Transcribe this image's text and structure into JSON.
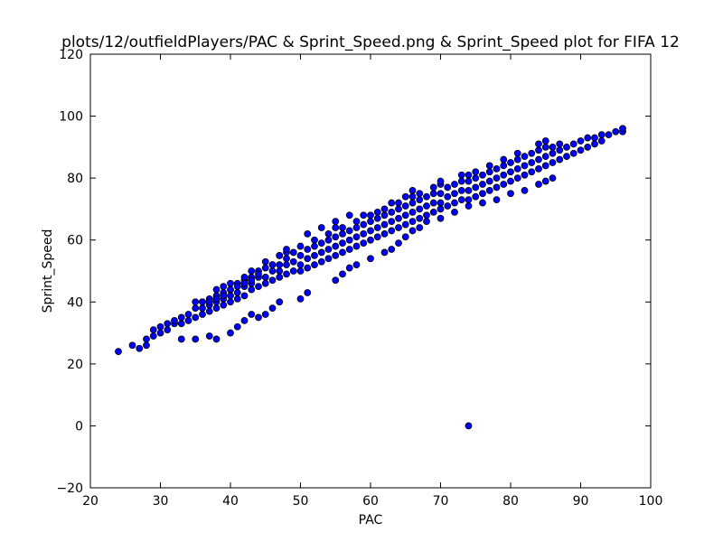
{
  "chart_data": {
    "type": "scatter",
    "title": "plots/12/outfieldPlayers/PAC & Sprint_Speed.png & Sprint_Speed plot for FIFA 12",
    "xlabel": "PAC",
    "ylabel": "Sprint_Speed",
    "xlim": [
      20,
      100
    ],
    "ylim": [
      -20,
      120
    ],
    "xticks": [
      "20",
      "30",
      "40",
      "50",
      "60",
      "70",
      "80",
      "90",
      "100"
    ],
    "yticks": [
      "−20",
      "0",
      "20",
      "40",
      "60",
      "80",
      "100",
      "120"
    ],
    "grid": false,
    "legend": "none",
    "marker_color": "#0000ff",
    "marker_edge_color": "#000000",
    "series": [
      {
        "x": [
          24,
          26,
          27,
          28,
          28,
          29,
          29,
          30,
          30,
          31,
          31,
          32,
          32,
          33,
          33,
          34,
          34,
          35,
          35,
          35,
          36,
          36,
          36,
          37,
          37,
          37,
          38,
          38,
          38,
          38,
          39,
          39,
          39,
          39,
          40,
          40,
          40,
          40,
          41,
          41,
          41,
          42,
          42,
          42,
          42,
          43,
          43,
          43,
          43,
          44,
          44,
          44,
          45,
          45,
          45,
          45,
          46,
          46,
          46,
          47,
          47,
          47,
          47,
          48,
          48,
          48,
          48,
          49,
          49,
          49,
          50,
          50,
          50,
          50,
          51,
          51,
          51,
          52,
          52,
          52,
          52,
          53,
          53,
          53,
          54,
          54,
          54,
          54,
          55,
          55,
          55,
          55,
          56,
          56,
          56,
          56,
          57,
          57,
          57,
          58,
          58,
          58,
          58,
          59,
          59,
          59,
          60,
          60,
          60,
          60,
          61,
          61,
          61,
          62,
          62,
          62,
          62,
          63,
          63,
          63,
          64,
          64,
          64,
          64,
          65,
          65,
          65,
          66,
          66,
          66,
          66,
          67,
          67,
          67,
          68,
          68,
          68,
          69,
          69,
          69,
          70,
          70,
          70,
          70,
          71,
          71,
          71,
          72,
          72,
          72,
          73,
          73,
          73,
          74,
          74,
          74,
          74,
          75,
          75,
          75,
          76,
          76,
          76,
          77,
          77,
          77,
          78,
          78,
          78,
          79,
          79,
          79,
          80,
          80,
          80,
          81,
          81,
          81,
          82,
          82,
          82,
          83,
          83,
          83,
          84,
          84,
          84,
          85,
          85,
          85,
          86,
          86,
          86,
          87,
          87,
          87,
          88,
          88,
          89,
          89,
          90,
          90,
          91,
          91,
          92,
          92,
          93,
          93,
          94,
          95,
          96,
          96,
          33,
          35,
          37,
          38,
          40,
          41,
          42,
          43,
          44,
          45,
          46,
          47,
          50,
          51,
          55,
          56,
          57,
          58,
          60,
          62,
          63,
          64,
          65,
          66,
          67,
          68,
          70,
          72,
          74,
          76,
          78,
          80,
          82,
          84,
          85,
          86,
          36,
          37,
          38,
          39,
          40,
          41,
          42,
          43,
          44,
          46,
          47,
          48,
          51,
          53,
          55,
          57,
          59,
          61,
          63,
          65,
          66,
          67,
          69,
          70,
          73,
          75,
          77,
          79,
          81,
          84,
          85,
          74
        ],
        "y": [
          24,
          26,
          25,
          26,
          28,
          29,
          31,
          30,
          32,
          31,
          33,
          33,
          34,
          33,
          35,
          34,
          36,
          35,
          38,
          40,
          36,
          38,
          40,
          37,
          39,
          41,
          38,
          40,
          42,
          44,
          39,
          41,
          43,
          45,
          40,
          42,
          44,
          46,
          41,
          43,
          46,
          42,
          45,
          47,
          48,
          44,
          46,
          48,
          50,
          45,
          48,
          50,
          46,
          48,
          51,
          53,
          47,
          50,
          52,
          48,
          50,
          52,
          55,
          49,
          52,
          54,
          56,
          50,
          53,
          56,
          50,
          52,
          55,
          58,
          51,
          54,
          57,
          52,
          55,
          58,
          60,
          53,
          56,
          59,
          54,
          57,
          60,
          62,
          55,
          58,
          61,
          64,
          56,
          59,
          62,
          64,
          57,
          60,
          63,
          58,
          61,
          64,
          66,
          59,
          62,
          65,
          60,
          63,
          66,
          68,
          61,
          64,
          67,
          62,
          65,
          68,
          70,
          63,
          66,
          69,
          64,
          67,
          70,
          72,
          65,
          68,
          71,
          66,
          69,
          72,
          74,
          67,
          70,
          73,
          68,
          71,
          74,
          69,
          72,
          75,
          70,
          72,
          75,
          78,
          71,
          74,
          77,
          72,
          75,
          78,
          73,
          76,
          79,
          73,
          76,
          79,
          81,
          74,
          77,
          80,
          75,
          78,
          81,
          76,
          79,
          82,
          77,
          80,
          83,
          78,
          81,
          84,
          79,
          82,
          85,
          80,
          83,
          86,
          81,
          84,
          87,
          82,
          85,
          88,
          83,
          86,
          89,
          84,
          87,
          90,
          85,
          88,
          90,
          86,
          89,
          91,
          87,
          90,
          88,
          91,
          89,
          92,
          90,
          93,
          91,
          93,
          92,
          94,
          94,
          95,
          95,
          96,
          28,
          28,
          29,
          28,
          30,
          32,
          34,
          36,
          35,
          36,
          38,
          40,
          41,
          43,
          47,
          49,
          51,
          52,
          54,
          56,
          57,
          59,
          61,
          63,
          64,
          66,
          67,
          69,
          71,
          72,
          73,
          75,
          76,
          78,
          79,
          80,
          40,
          40,
          41,
          42,
          44,
          45,
          46,
          47,
          49,
          52,
          55,
          57,
          62,
          64,
          66,
          68,
          68,
          69,
          72,
          74,
          76,
          75,
          77,
          79,
          81,
          82,
          84,
          86,
          88,
          91,
          92,
          0
        ]
      }
    ]
  }
}
